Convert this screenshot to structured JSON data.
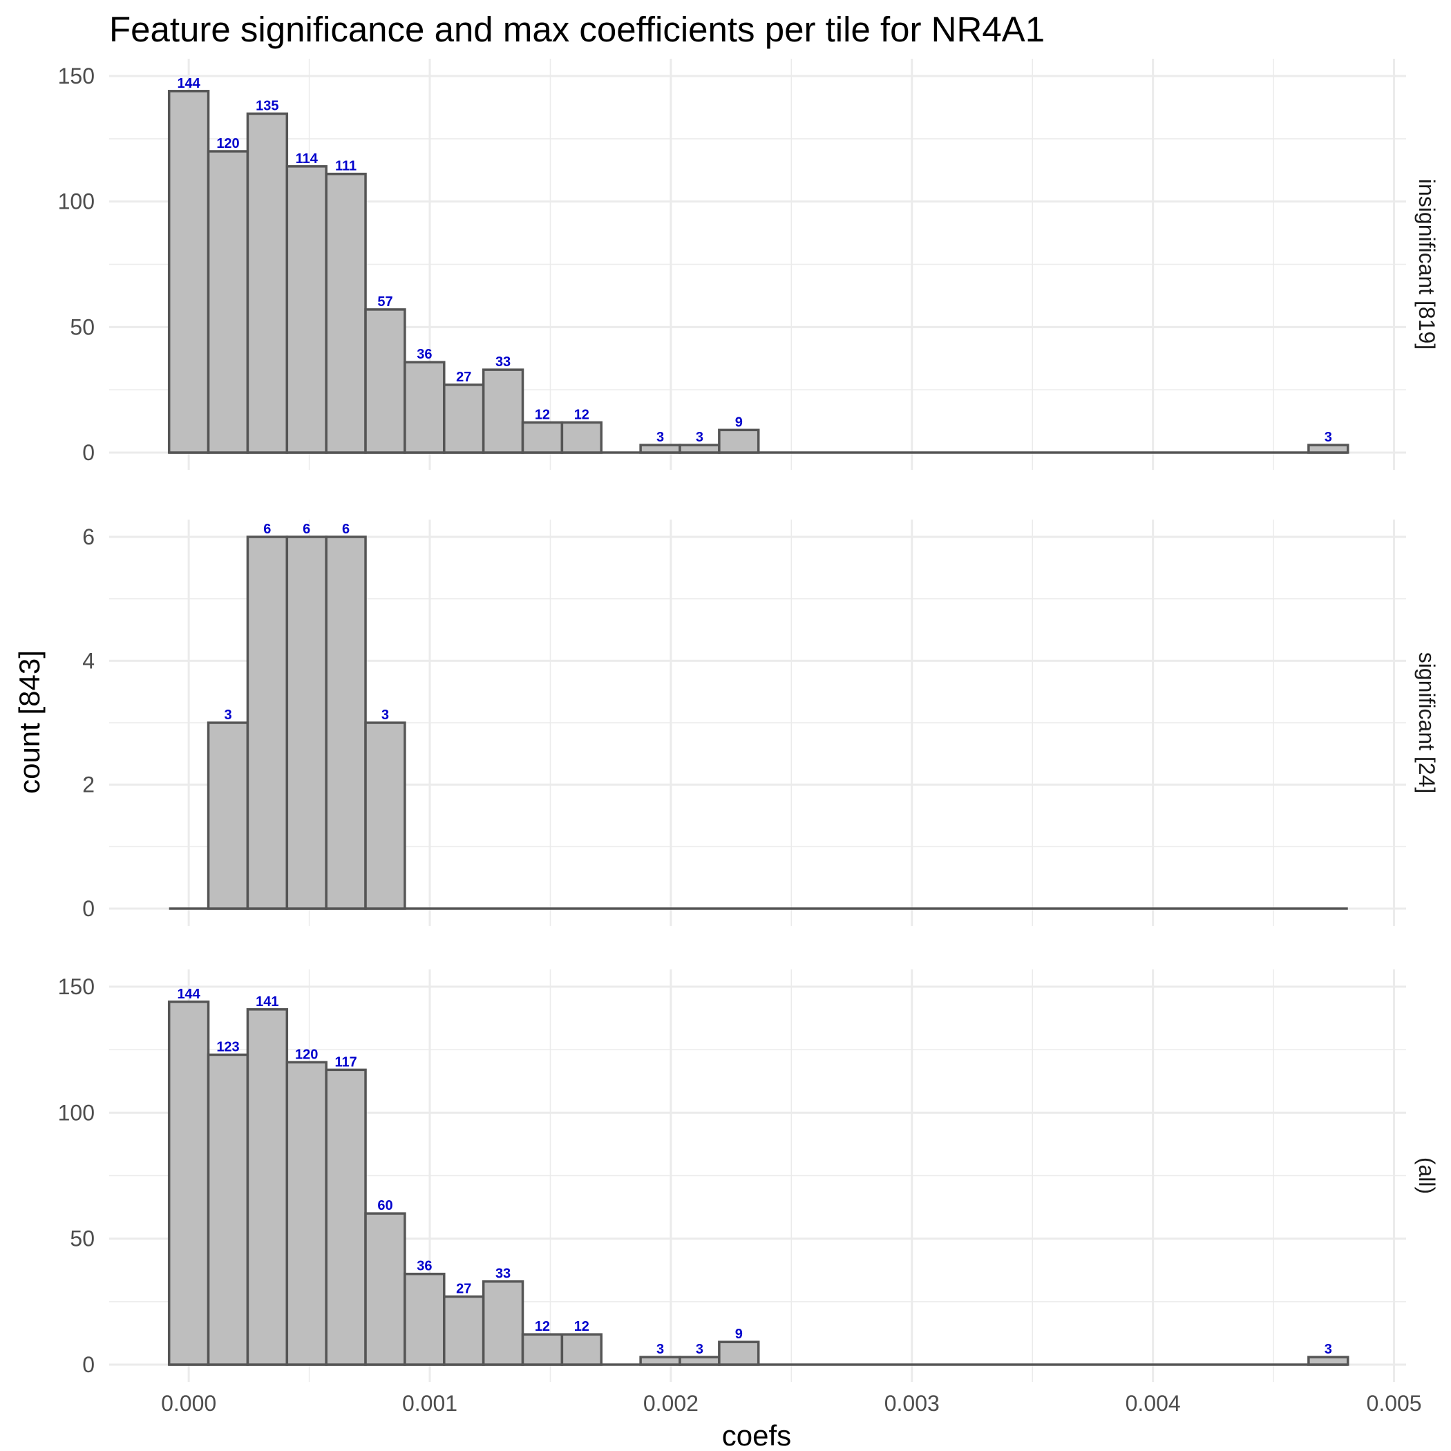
{
  "chart_data": {
    "type": "bar",
    "title": "Feature significance and max coefficients per tile for NR4A1",
    "xlabel": "coefs",
    "ylabel": "count [843]",
    "xlim": [
      -0.00033,
      0.00505
    ],
    "x_ticks": [
      "0.000",
      "0.001",
      "0.002",
      "0.003",
      "0.004",
      "0.005"
    ],
    "x_tick_values": [
      0,
      0.001,
      0.002,
      0.003,
      0.004,
      0.005
    ],
    "bin_width": 0.000163,
    "bin_start": -8.15e-05,
    "grid": true,
    "colors": {
      "bar_fill": "#bebebe",
      "bar_stroke": "#555555",
      "label": "#0000cc",
      "grid": "#ebebeb"
    },
    "panels": [
      {
        "strip": "insignificant [819]",
        "ylim": [
          0,
          150
        ],
        "y_ticks": [
          0,
          50,
          100,
          150
        ],
        "counts": [
          144,
          120,
          135,
          114,
          111,
          57,
          36,
          27,
          33,
          12,
          12,
          0,
          3,
          3,
          9,
          0,
          0,
          0,
          0,
          0,
          0,
          0,
          0,
          0,
          0,
          0,
          0,
          0,
          0,
          3
        ],
        "labels": [
          "144",
          "120",
          "135",
          "114",
          "111",
          "57",
          "36",
          "27",
          "33",
          "12",
          "12",
          "",
          "3",
          "3",
          "9",
          "",
          "",
          "",
          "",
          "",
          "",
          "",
          "",
          "",
          "",
          "",
          "",
          "",
          "",
          "3"
        ]
      },
      {
        "strip": "significant [24]",
        "ylim": [
          0,
          6
        ],
        "y_ticks": [
          0,
          2,
          4,
          6
        ],
        "counts": [
          0,
          3,
          6,
          6,
          6,
          3,
          0,
          0,
          0,
          0,
          0,
          0,
          0,
          0,
          0,
          0,
          0,
          0,
          0,
          0,
          0,
          0,
          0,
          0,
          0,
          0,
          0,
          0,
          0,
          0
        ],
        "labels": [
          "",
          "3",
          "6",
          "6",
          "6",
          "3",
          "",
          "",
          "",
          "",
          "",
          "",
          "",
          "",
          "",
          "",
          "",
          "",
          "",
          "",
          "",
          "",
          "",
          "",
          "",
          "",
          "",
          "",
          "",
          ""
        ]
      },
      {
        "strip": "(all)",
        "ylim": [
          0,
          150
        ],
        "y_ticks": [
          0,
          50,
          100,
          150
        ],
        "counts": [
          144,
          123,
          141,
          120,
          117,
          60,
          36,
          27,
          33,
          12,
          12,
          0,
          3,
          3,
          9,
          0,
          0,
          0,
          0,
          0,
          0,
          0,
          0,
          0,
          0,
          0,
          0,
          0,
          0,
          3
        ],
        "labels": [
          "144",
          "123",
          "141",
          "120",
          "117",
          "60",
          "36",
          "27",
          "33",
          "12",
          "12",
          "",
          "3",
          "3",
          "9",
          "",
          "",
          "",
          "",
          "",
          "",
          "",
          "",
          "",
          "",
          "",
          "",
          "",
          "",
          "3"
        ]
      }
    ]
  }
}
